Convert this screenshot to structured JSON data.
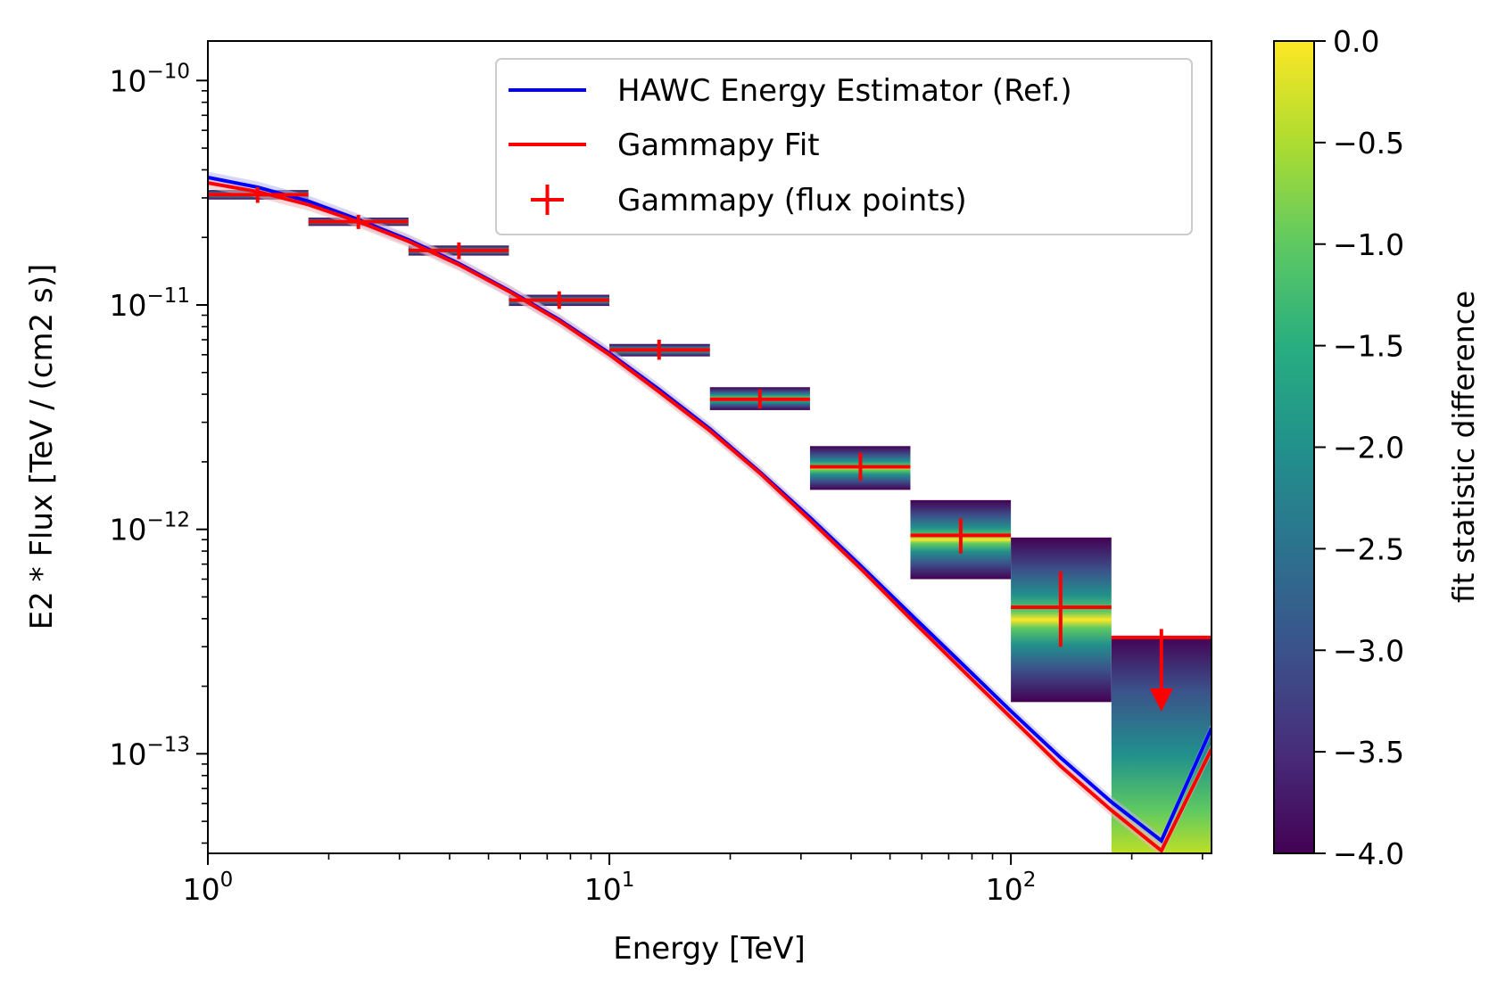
{
  "chart_data": {
    "type": "scatter",
    "title": "",
    "xlabel": "Energy [TeV]",
    "ylabel": "E2 * Flux [TeV / (cm2 s)]",
    "xscale": "log",
    "yscale": "log",
    "xlim": [
      1,
      316
    ],
    "ylim": [
      3.6e-14,
      1.5e-10
    ],
    "x_ticks": [
      {
        "value": 1,
        "base": "10",
        "exp": "0"
      },
      {
        "value": 10,
        "base": "10",
        "exp": "1"
      },
      {
        "value": 100,
        "base": "10",
        "exp": "2"
      }
    ],
    "y_ticks": [
      {
        "value": 1e-10,
        "base": "10",
        "exp": "−10"
      },
      {
        "value": 1e-11,
        "base": "10",
        "exp": "−11"
      },
      {
        "value": 1e-12,
        "base": "10",
        "exp": "−12"
      },
      {
        "value": 1e-13,
        "base": "10",
        "exp": "−13"
      }
    ],
    "grid": false,
    "legend": {
      "placement": "top-right",
      "entries": [
        {
          "label": "HAWC Energy Estimator (Ref.)",
          "color": "#0000ff",
          "marker": "line"
        },
        {
          "label": "Gammapy Fit",
          "color": "#ff0000",
          "marker": "line"
        },
        {
          "label": "Gammapy (flux points)",
          "color": "#ff0000",
          "marker": "plus"
        }
      ]
    },
    "series": [
      {
        "name": "HAWC Energy Estimator (Ref.)",
        "type": "line",
        "color": "#0000ff",
        "band_color": "#b4b4f0",
        "x": [
          1,
          1.33,
          1.78,
          2.37,
          3.16,
          4.22,
          5.62,
          7.5,
          10,
          13.3,
          17.8,
          23.7,
          31.6,
          42.2,
          56.2,
          75,
          100,
          133,
          178,
          237,
          316
        ],
        "y": [
          3.7e-11,
          3.35e-11,
          2.9e-11,
          2.4e-11,
          1.95e-11,
          1.53e-11,
          1.16e-11,
          8.6e-12,
          6.1e-12,
          4.2e-12,
          2.8e-12,
          1.8e-12,
          1.13e-12,
          6.9e-13,
          4.2e-13,
          2.55e-13,
          1.55e-13,
          9.6e-14,
          6.1e-14,
          4.1e-14,
          1.3e-13
        ]
      },
      {
        "name": "Gammapy Fit",
        "type": "line",
        "color": "#ff0000",
        "band_color": "#f0b4b4",
        "x": [
          1,
          1.33,
          1.78,
          2.37,
          3.16,
          4.22,
          5.62,
          7.5,
          10,
          13.3,
          17.8,
          23.7,
          31.6,
          42.2,
          56.2,
          75,
          100,
          133,
          178,
          237,
          316
        ],
        "y": [
          3.5e-11,
          3.2e-11,
          2.8e-11,
          2.35e-11,
          1.92e-11,
          1.51e-11,
          1.15e-11,
          8.5e-12,
          6e-12,
          4.1e-12,
          2.75e-12,
          1.78e-12,
          1.1e-12,
          6.7e-13,
          4e-13,
          2.4e-13,
          1.45e-13,
          8.8e-14,
          5.6e-14,
          3.7e-14,
          1.05e-13
        ]
      },
      {
        "name": "Gammapy (flux points)",
        "type": "errorbar",
        "color": "#ff0000",
        "points": [
          {
            "x": 1.33,
            "xmin": 1.0,
            "xmax": 1.78,
            "y": 3.1e-11,
            "ylo": 2.85e-11,
            "yhi": 3.35e-11,
            "ul": false
          },
          {
            "x": 2.37,
            "xmin": 1.78,
            "xmax": 3.16,
            "y": 2.35e-11,
            "ylo": 2.18e-11,
            "yhi": 2.52e-11,
            "ul": false
          },
          {
            "x": 4.22,
            "xmin": 3.16,
            "xmax": 5.62,
            "y": 1.75e-11,
            "ylo": 1.6e-11,
            "yhi": 1.9e-11,
            "ul": false
          },
          {
            "x": 7.5,
            "xmin": 5.62,
            "xmax": 10,
            "y": 1.05e-11,
            "ylo": 9.6e-12,
            "yhi": 1.15e-11,
            "ul": false
          },
          {
            "x": 13.3,
            "xmin": 10,
            "xmax": 17.8,
            "y": 6.3e-12,
            "ylo": 5.7e-12,
            "yhi": 7e-12,
            "ul": false
          },
          {
            "x": 23.7,
            "xmin": 17.8,
            "xmax": 31.6,
            "y": 3.8e-12,
            "ylo": 3.45e-12,
            "yhi": 4.2e-12,
            "ul": false
          },
          {
            "x": 42.2,
            "xmin": 31.6,
            "xmax": 56.2,
            "y": 1.9e-12,
            "ylo": 1.65e-12,
            "yhi": 2.2e-12,
            "ul": false
          },
          {
            "x": 75,
            "xmin": 56.2,
            "xmax": 100,
            "y": 9.4e-13,
            "ylo": 7.8e-13,
            "yhi": 1.12e-12,
            "ul": false
          },
          {
            "x": 133,
            "xmin": 100,
            "xmax": 178,
            "y": 4.5e-13,
            "ylo": 3e-13,
            "yhi": 6.5e-13,
            "ul": false
          },
          {
            "x": 237,
            "xmin": 178,
            "xmax": 316,
            "y": 3.3e-13,
            "ylo": 1.6e-13,
            "yhi": 3.6e-13,
            "ul": true
          }
        ]
      }
    ],
    "likelihood_profiles": [
      {
        "xmin": 1.0,
        "xmax": 1.78,
        "ymin": 2.95e-11,
        "ymax": 3.25e-11
      },
      {
        "xmin": 1.78,
        "xmax": 3.16,
        "ymin": 2.25e-11,
        "ymax": 2.45e-11
      },
      {
        "xmin": 3.16,
        "xmax": 5.62,
        "ymin": 1.66e-11,
        "ymax": 1.84e-11
      },
      {
        "xmin": 5.62,
        "xmax": 10,
        "ymin": 9.9e-12,
        "ymax": 1.11e-11
      },
      {
        "xmin": 10,
        "xmax": 17.8,
        "ymin": 5.9e-12,
        "ymax": 6.7e-12
      },
      {
        "xmin": 17.8,
        "xmax": 31.6,
        "ymin": 3.4e-12,
        "ymax": 4.3e-12
      },
      {
        "xmin": 31.6,
        "xmax": 56.2,
        "ymin": 1.5e-12,
        "ymax": 2.35e-12
      },
      {
        "xmin": 56.2,
        "xmax": 100,
        "ymin": 6e-13,
        "ymax": 1.35e-12
      },
      {
        "xmin": 100,
        "xmax": 178,
        "ymin": 1.7e-13,
        "ymax": 9.2e-13
      },
      {
        "xmin": 178,
        "xmax": 316,
        "ymin": 3.6e-14,
        "ymax": 3.35e-13
      }
    ],
    "colorbar": {
      "label": "fit statistic difference",
      "colormap": "viridis",
      "range": [
        -4.0,
        0.0
      ],
      "ticks": [
        "0.0",
        "−0.5",
        "−1.0",
        "−1.5",
        "−2.0",
        "−2.5",
        "−3.0",
        "−3.5",
        "−4.0"
      ],
      "tick_values": [
        0,
        -0.5,
        -1.0,
        -1.5,
        -2.0,
        -2.5,
        -3.0,
        -3.5,
        -4.0
      ]
    }
  }
}
